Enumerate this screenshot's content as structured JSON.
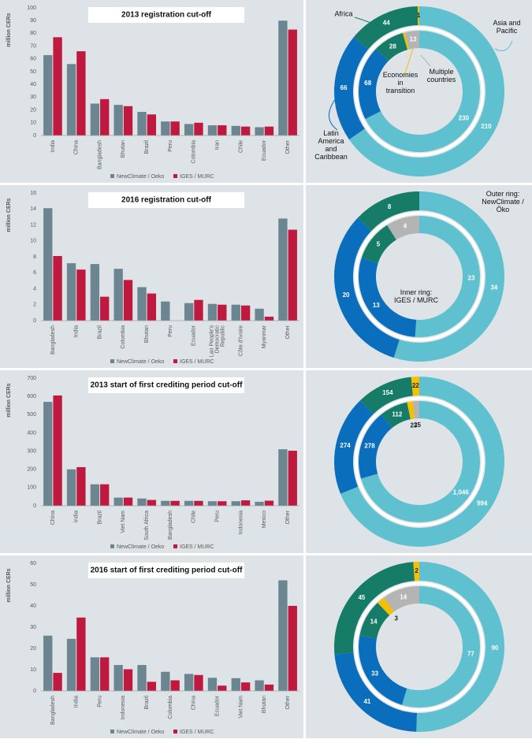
{
  "chart_data": [
    {
      "type": "bar",
      "title": "2013 registration cut-off",
      "y_label": "million CERs",
      "categories": [
        "India",
        "China",
        "Bangladesh",
        "Bhutan",
        "Brazil",
        "Peru",
        "Colombia",
        "Iran",
        "Chile",
        "Ecuador",
        "Other"
      ],
      "series": [
        {
          "name": "NewClimate / Oeko",
          "color": "#6b8591",
          "values": [
            63,
            56,
            25,
            24,
            18.5,
            11,
            9,
            8,
            7.5,
            6.5,
            90
          ]
        },
        {
          "name": "IGES / MURC",
          "color": "#c0193f",
          "values": [
            77,
            66,
            28.5,
            23,
            16.5,
            11,
            10,
            8,
            7,
            7,
            83
          ]
        }
      ],
      "ylim": [
        0,
        100
      ],
      "yticks": [
        0,
        10,
        20,
        30,
        40,
        50,
        60,
        70,
        80,
        90,
        100
      ],
      "grid": false
    },
    {
      "type": "bar",
      "title": "2016 registration cut-off",
      "y_label": "million CERs",
      "categories": [
        "Bangladesh",
        "India",
        "Brazil",
        "Colombia",
        "Bhutan",
        "Peru",
        "Ecuador",
        "Lao People's Democratic Republic",
        "Côte d'Ivoire",
        "Myanmar",
        "Other"
      ],
      "series": [
        {
          "name": "NewClimate / Oeko",
          "color": "#6b8591",
          "values": [
            14.1,
            7.2,
            7.1,
            6.5,
            4.2,
            2.4,
            2.2,
            2.1,
            2.0,
            1.5,
            12.8
          ]
        },
        {
          "name": "IGES / MURC",
          "color": "#c0193f",
          "values": [
            8.1,
            6.4,
            3.0,
            5.1,
            3.4,
            null,
            2.6,
            2.0,
            1.9,
            0.5,
            11.4
          ]
        }
      ],
      "ylim": [
        0,
        16
      ],
      "yticks": [
        0,
        2,
        4,
        6,
        8,
        10,
        12,
        14,
        16
      ],
      "grid": false
    },
    {
      "type": "bar",
      "title": "2013 start of first crediting period cut-off",
      "y_label": "million CERs",
      "categories": [
        "China",
        "India",
        "Brazil",
        "Viet Nam",
        "South Africa",
        "Bangladesh",
        "Chile",
        "Peru",
        "Indonesia",
        "Mexico",
        "Other"
      ],
      "series": [
        {
          "name": "NewClimate / Oeko",
          "color": "#6b8591",
          "values": [
            570,
            200,
            118,
            45,
            40,
            27,
            27,
            25,
            25,
            22,
            310
          ]
        },
        {
          "name": "IGES / MURC",
          "color": "#c0193f",
          "values": [
            605,
            212,
            118,
            45,
            32,
            27,
            27,
            25,
            30,
            28,
            302
          ]
        }
      ],
      "ylim": [
        0,
        700
      ],
      "yticks": [
        0,
        100,
        200,
        300,
        400,
        500,
        600,
        700
      ],
      "grid": false
    },
    {
      "type": "bar",
      "title": "2016 start of first crediting period cut-off",
      "y_label": "million CERs",
      "categories": [
        "Bangladesh",
        "India",
        "Peru",
        "Indonesia",
        "Brazil",
        "Colombia",
        "China",
        "Ecuador",
        "Viet Nam",
        "Bhutan",
        "Other"
      ],
      "series": [
        {
          "name": "NewClimate / Oeko",
          "color": "#6b8591",
          "values": [
            26,
            24.5,
            15.8,
            12.2,
            12.2,
            9,
            8,
            6.2,
            6,
            5,
            52
          ]
        },
        {
          "name": "IGES / MURC",
          "color": "#c0193f",
          "values": [
            8.5,
            34.5,
            15.8,
            10.2,
            4.3,
            5,
            7.5,
            2.5,
            4,
            3,
            40
          ]
        }
      ],
      "ylim": [
        0,
        60
      ],
      "yticks": [
        0,
        10,
        20,
        30,
        40,
        50,
        60
      ],
      "grid": false
    },
    {
      "type": "donut",
      "categories": [
        "Asia and Pacific",
        "Latin America and Caribbean",
        "Africa",
        "Economies in transition",
        "Multiple countries"
      ],
      "colors": [
        "#5fc1d0",
        "#0a6ebd",
        "#167c67",
        "#f5c000",
        "#b4b4b4"
      ],
      "series": [
        {
          "values": [
            210,
            66,
            44,
            1,
            0
          ],
          "value_labels": [
            "210",
            "66",
            "44",
            "1",
            null
          ]
        },
        {
          "values": [
            230,
            68,
            28,
            2,
            13
          ],
          "value_labels": [
            "230",
            "68",
            "28",
            null,
            "13"
          ]
        }
      ]
    },
    {
      "type": "donut",
      "colors": [
        "#5fc1d0",
        "#0a6ebd",
        "#167c67",
        "#f5c000",
        "#b4b4b4"
      ],
      "annotations": [
        "Outer ring: NewClimate / Öko",
        "Inner ring: IGES / MURC"
      ],
      "series": [
        {
          "values": [
            34,
            20,
            8,
            0,
            0
          ],
          "value_labels": [
            "34",
            "20",
            "8",
            null,
            null
          ]
        },
        {
          "values": [
            23,
            13,
            5,
            0,
            4
          ],
          "value_labels": [
            "23",
            "13",
            "5",
            null,
            "4"
          ]
        }
      ]
    },
    {
      "type": "donut",
      "colors": [
        "#5fc1d0",
        "#0a6ebd",
        "#167c67",
        "#f5c000",
        "#b4b4b4"
      ],
      "series": [
        {
          "values": [
            994,
            274,
            154,
            22,
            0
          ],
          "value_labels": [
            "994",
            "274",
            "154",
            "22",
            null
          ]
        },
        {
          "values": [
            1046,
            278,
            112,
            23,
            25
          ],
          "value_labels": [
            "1,046",
            "278",
            "112",
            "23",
            "25"
          ]
        }
      ]
    },
    {
      "type": "donut",
      "colors": [
        "#5fc1d0",
        "#0a6ebd",
        "#167c67",
        "#f5c000",
        "#b4b4b4"
      ],
      "series": [
        {
          "values": [
            90,
            41,
            45,
            2,
            0
          ],
          "value_labels": [
            "90",
            "41",
            "45",
            "2",
            null
          ]
        },
        {
          "values": [
            77,
            33,
            14,
            3,
            14
          ],
          "value_labels": [
            "77",
            "33",
            "14",
            "3",
            "14"
          ]
        }
      ]
    }
  ]
}
